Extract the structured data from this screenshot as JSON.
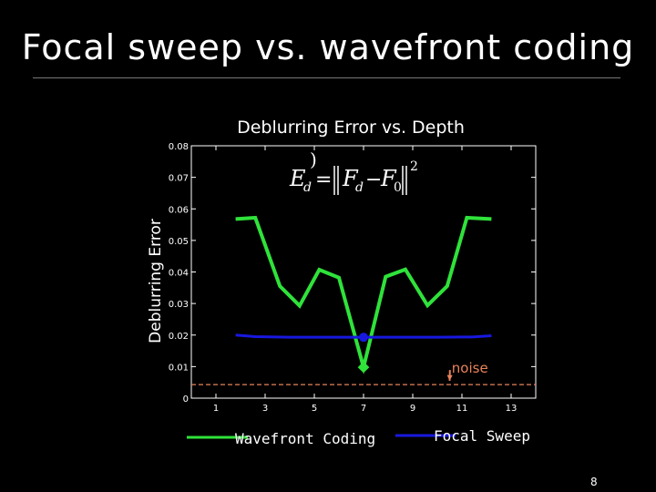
{
  "slide": {
    "title": "Focal sweep vs. wavefront coding",
    "page_number": "8"
  },
  "colors": {
    "wavefront": "#2fe23a",
    "focal": "#1818e0",
    "noise": "#e8825a"
  },
  "chart_data": {
    "type": "line",
    "title": "Deblurring Error vs. Depth",
    "xlabel": "",
    "ylabel": "Deblurring Error",
    "xlim": [
      0,
      14
    ],
    "ylim": [
      0,
      0.08
    ],
    "xticks": [
      1,
      3,
      5,
      7,
      9,
      11,
      13
    ],
    "yticks": [
      0,
      0.01,
      0.02,
      0.03,
      0.04,
      0.05,
      0.06,
      0.07,
      0.08
    ],
    "ytick_labels": [
      "0",
      "0.01",
      "0.02",
      "0.03",
      "0.04",
      "0.05",
      "0.06",
      "0.07",
      "0.08"
    ],
    "grid": false,
    "formula": "E_d = ||F_d − F_0||^2",
    "series": [
      {
        "name": "Wavefront Coding",
        "x": [
          1.8,
          2.6,
          3.6,
          4.4,
          5.2,
          6.0,
          7.0,
          7.9,
          8.7,
          9.6,
          10.4,
          11.2,
          12.2
        ],
        "y": [
          0.0568,
          0.0572,
          0.0355,
          0.0293,
          0.0407,
          0.0382,
          0.0098,
          0.0385,
          0.0408,
          0.0294,
          0.0355,
          0.0572,
          0.0568
        ],
        "marker_x": 7.0,
        "marker_y": 0.0098
      },
      {
        "name": "Focal Sweep",
        "x": [
          1.8,
          2.6,
          4.0,
          6.0,
          7.0,
          8.0,
          10.0,
          11.4,
          12.2
        ],
        "y": [
          0.02,
          0.0195,
          0.0193,
          0.0193,
          0.0193,
          0.0193,
          0.0193,
          0.0194,
          0.0198
        ],
        "marker_x": 7.0,
        "marker_y": 0.0193
      }
    ],
    "noise_level": 0.0043,
    "annotations": [
      {
        "text": "noise",
        "x": 11.4,
        "y": 0.0095,
        "arrow_to_x": 10.5,
        "arrow_to_y": 0.0055
      }
    ],
    "legend": {
      "placement": "bottom",
      "wavefront_label": "Wavefront Coding",
      "focal_label": "Focal Sweep"
    }
  }
}
